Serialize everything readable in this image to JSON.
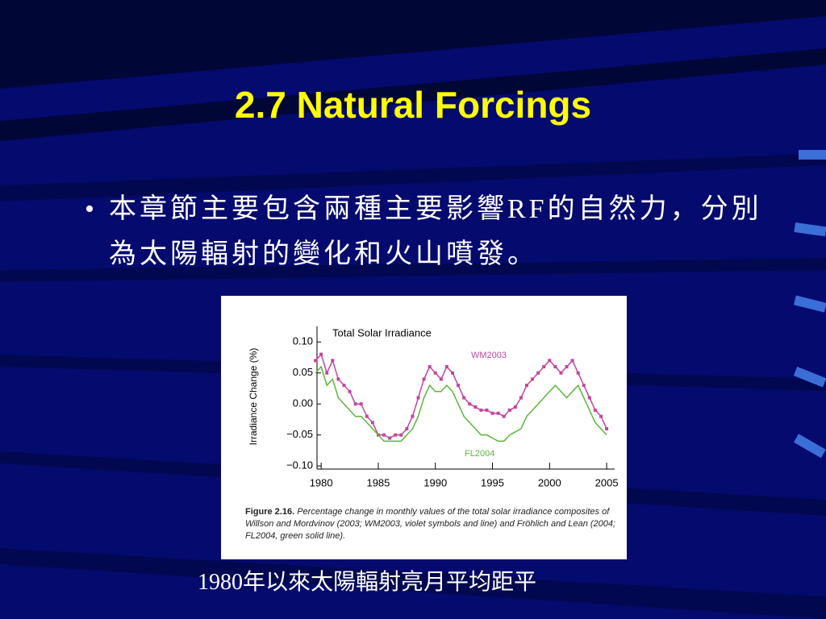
{
  "title": "2.7 Natural Forcings",
  "bullets": [
    "本章節主要包含兩種主要影響RF的自然力，分別為太陽輻射的變化和火山噴發。"
  ],
  "figure": {
    "type": "line",
    "title": "Total Solar Irradiance",
    "y_label": "Irradiance Change (%)",
    "x": [
      1979.5,
      1980,
      1980.5,
      1981,
      1981.5,
      1982,
      1982.5,
      1983,
      1983.5,
      1984,
      1984.5,
      1985,
      1985.5,
      1986,
      1986.5,
      1987,
      1987.5,
      1988,
      1988.5,
      1989,
      1989.5,
      1990,
      1990.5,
      1991,
      1991.5,
      1992,
      1992.5,
      1993,
      1993.5,
      1994,
      1994.5,
      1995,
      1995.5,
      1996,
      1996.5,
      1997,
      1997.5,
      1998,
      1998.5,
      1999,
      1999.5,
      2000,
      2000.5,
      2001,
      2001.5,
      2002,
      2002.5,
      2003,
      2003.5,
      2004,
      2004.5,
      2005
    ],
    "series": [
      {
        "name": "WM2003",
        "color": "#c2459e",
        "markers": true,
        "values": [
          0.07,
          0.08,
          0.05,
          0.07,
          0.04,
          0.03,
          0.02,
          0.0,
          0.0,
          -0.02,
          -0.03,
          -0.05,
          -0.05,
          -0.055,
          -0.05,
          -0.05,
          -0.04,
          -0.02,
          0.01,
          0.04,
          0.06,
          0.05,
          0.04,
          0.06,
          0.05,
          0.03,
          0.01,
          0.0,
          -0.005,
          -0.01,
          -0.01,
          -0.015,
          -0.015,
          -0.02,
          -0.01,
          -0.005,
          0.01,
          0.03,
          0.04,
          0.05,
          0.06,
          0.07,
          0.06,
          0.05,
          0.06,
          0.07,
          0.05,
          0.03,
          0.01,
          -0.01,
          -0.02,
          -0.04
        ]
      },
      {
        "name": "FL2004",
        "color": "#5db53b",
        "markers": false,
        "values": [
          0.05,
          0.06,
          0.03,
          0.04,
          0.01,
          0.0,
          -0.01,
          -0.02,
          -0.02,
          -0.03,
          -0.04,
          -0.05,
          -0.06,
          -0.06,
          -0.06,
          -0.06,
          -0.05,
          -0.04,
          -0.02,
          0.01,
          0.03,
          0.02,
          0.02,
          0.03,
          0.02,
          0.0,
          -0.02,
          -0.03,
          -0.04,
          -0.05,
          -0.05,
          -0.055,
          -0.06,
          -0.06,
          -0.05,
          -0.045,
          -0.04,
          -0.02,
          -0.01,
          0.0,
          0.01,
          0.02,
          0.03,
          0.02,
          0.01,
          0.02,
          0.03,
          0.01,
          -0.01,
          -0.03,
          -0.04,
          -0.05
        ]
      }
    ],
    "xlim": [
      1979,
      2005.7
    ],
    "xticks": [
      1980,
      1985,
      1990,
      1995,
      2000,
      2005
    ],
    "ylim": [
      -0.105,
      0.125
    ],
    "yticks": [
      {
        "value": 0.1,
        "label": "0.10"
      },
      0.05,
      {
        "value": 0,
        "label": "0.00"
      },
      {
        "value": -0.05,
        "label": "−0.05"
      },
      {
        "value": -0.1,
        "label": "−0.10"
      }
    ],
    "caption_label": "Figure 2.16.",
    "caption": "Percentage change in monthly values of the total solar irradiance composites of Willson and Mordvinov (2003; WM2003, violet symbols and line) and Fröhlich and Lean (2004; FL2004, green solid line)."
  },
  "caption": "1980年以來太陽輻射亮月平均距平"
}
